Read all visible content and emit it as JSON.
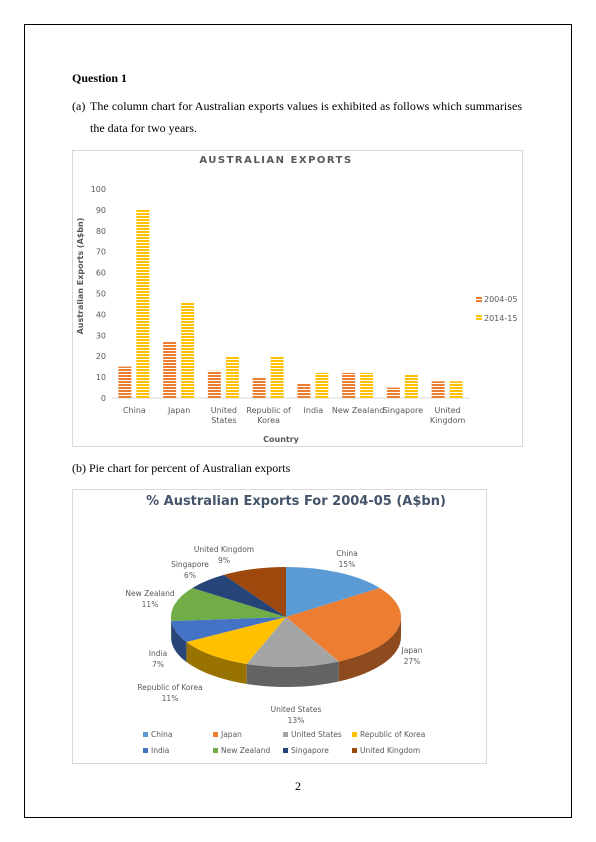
{
  "document": {
    "heading": "Question 1",
    "para_a_label": "(a)",
    "para_a_line1": "The column chart for Australian exports values is exhibited as follows which summarises",
    "para_a_line2": "the data for two years.",
    "para_b": "(b) Pie chart for percent of Australian exports",
    "page_number": "2"
  },
  "chart_data": [
    {
      "type": "bar",
      "title": "AUSTRALIAN EXPORTS",
      "x_label": "Country",
      "y_label": "Australian Exports (A$bn)",
      "categories": [
        "China",
        "Japan",
        "United States",
        "Republic of Korea",
        "India",
        "New Zealand",
        "Singapore",
        "United Kingdom"
      ],
      "series": [
        {
          "name": "2004-05",
          "color": "#ed7d31",
          "values": [
            15,
            27,
            13,
            10,
            7,
            12,
            5,
            8
          ]
        },
        {
          "name": "2014-15",
          "color": "#ffc000",
          "values": [
            90,
            46,
            20,
            20,
            12,
            12,
            11,
            8
          ]
        }
      ],
      "ylim": [
        0,
        100
      ],
      "yticks": [
        0,
        10,
        20,
        30,
        40,
        50,
        60,
        70,
        80,
        90,
        100
      ],
      "legend": "right"
    },
    {
      "type": "pie",
      "title": "%  Australian  Exports  For 2004-05 (A$bn)",
      "categories": [
        "China",
        "Japan",
        "United States",
        "Republic of Korea",
        "India",
        "New Zealand",
        "Singapore",
        "United Kingdom"
      ],
      "values": [
        15,
        27,
        13,
        11,
        7,
        11,
        6,
        9
      ],
      "value_labels": [
        "15%",
        "27%",
        "13%",
        "11%",
        "7%",
        "11%",
        "6%",
        "9%"
      ],
      "colors": [
        "#5b9bd5",
        "#ed7d31",
        "#a5a5a5",
        "#ffc000",
        "#4472c4",
        "#70ad47",
        "#264478",
        "#9e480e"
      ],
      "legend": "bottom"
    }
  ]
}
